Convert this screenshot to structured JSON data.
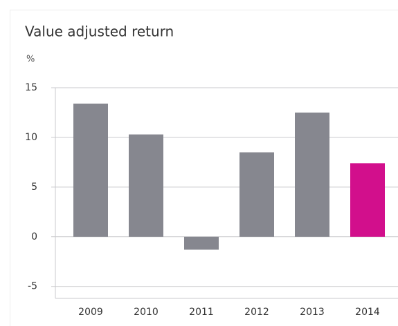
{
  "chart_data": {
    "type": "bar",
    "title": "Value adjusted return",
    "y_label": "%",
    "categories": [
      "2009",
      "2010",
      "2011",
      "2012",
      "2013",
      "2014"
    ],
    "values": [
      13.4,
      10.3,
      -1.3,
      8.5,
      12.5,
      7.4
    ],
    "colors": [
      "#86878f",
      "#86878f",
      "#86878f",
      "#86878f",
      "#86878f",
      "#d20f8c"
    ],
    "ylim": [
      -6.2,
      15
    ],
    "yticks": [
      -5,
      0,
      5,
      10,
      15
    ],
    "grid": true
  }
}
